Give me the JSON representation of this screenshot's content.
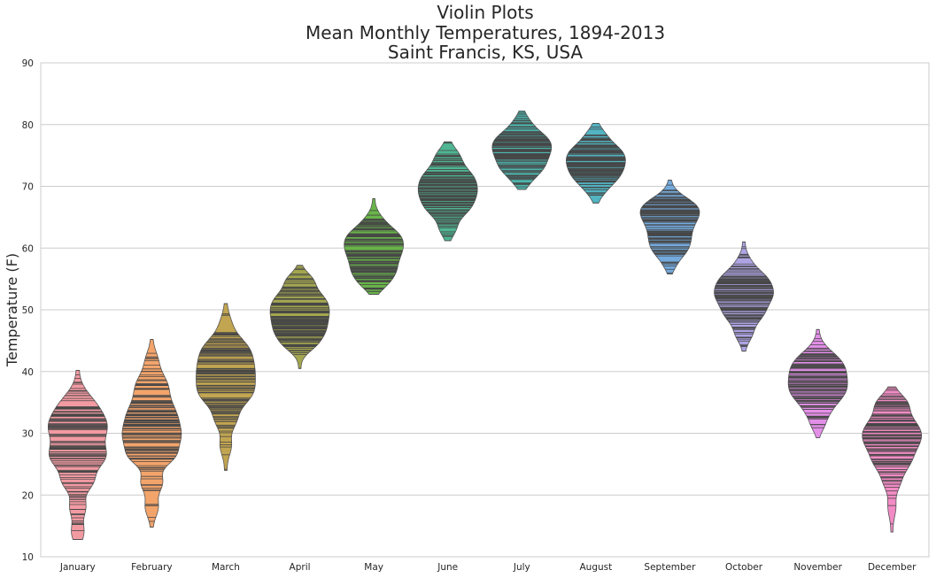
{
  "chart_data": {
    "type": "violin",
    "title": [
      "Violin Plots",
      "Mean Monthly Temperatures, 1894-2013",
      "Saint Francis, KS, USA"
    ],
    "xlabel": "",
    "ylabel": "Temperature (F)",
    "ylim": [
      10,
      90
    ],
    "yticks": [
      10,
      20,
      30,
      40,
      50,
      60,
      70,
      80,
      90
    ],
    "grid": true,
    "inner": "stick",
    "categories": [
      "January",
      "February",
      "March",
      "April",
      "May",
      "June",
      "July",
      "August",
      "September",
      "October",
      "November",
      "December"
    ],
    "colors": [
      "#f29aa2",
      "#f3a46b",
      "#c2a551",
      "#a3a64f",
      "#69b54a",
      "#4fb592",
      "#4db5ac",
      "#52b3c2",
      "#74aadd",
      "#aea3e3",
      "#e38fe8",
      "#f28bc5"
    ],
    "distributions": [
      {
        "month": "January",
        "min": 12.8,
        "max": 40.2,
        "peaks": [
          [
            31,
            0.8,
            2.5
          ],
          [
            26,
            0.7,
            2.0
          ],
          [
            22,
            0.35,
            1.5
          ],
          [
            18,
            0.2,
            1.5
          ],
          [
            14,
            0.15,
            1.5
          ],
          [
            35,
            0.3,
            2.0
          ]
        ]
      },
      {
        "month": "February",
        "min": 14.8,
        "max": 45.2,
        "peaks": [
          [
            33,
            0.8,
            2.5
          ],
          [
            29,
            0.75,
            2.0
          ],
          [
            26,
            0.55,
            1.5
          ],
          [
            22,
            0.35,
            1.5
          ],
          [
            18,
            0.2,
            1.5
          ],
          [
            38,
            0.45,
            2.0
          ],
          [
            42,
            0.15,
            1.5
          ]
        ]
      },
      {
        "month": "March",
        "min": 24.0,
        "max": 51.0,
        "peaks": [
          [
            40,
            0.8,
            2.5
          ],
          [
            36,
            0.6,
            2.0
          ],
          [
            44,
            0.5,
            2.0
          ],
          [
            32,
            0.25,
            1.5
          ],
          [
            28,
            0.15,
            1.5
          ],
          [
            48,
            0.1,
            1.5
          ]
        ]
      },
      {
        "month": "April",
        "min": 40.5,
        "max": 57.2,
        "peaks": [
          [
            49,
            0.8,
            2.0
          ],
          [
            52,
            0.6,
            1.8
          ],
          [
            46,
            0.55,
            1.6
          ],
          [
            44,
            0.25,
            1.2
          ],
          [
            55,
            0.3,
            1.2
          ]
        ]
      },
      {
        "month": "May",
        "min": 52.5,
        "max": 68.0,
        "peaks": [
          [
            62,
            0.85,
            1.8
          ],
          [
            59,
            0.8,
            1.8
          ],
          [
            56,
            0.6,
            1.5
          ],
          [
            54,
            0.25,
            1.2
          ],
          [
            65,
            0.1,
            1.2
          ]
        ]
      },
      {
        "month": "June",
        "min": 61.2,
        "max": 77.2,
        "peaks": [
          [
            69,
            0.85,
            2.0
          ],
          [
            72,
            0.5,
            1.6
          ],
          [
            66,
            0.4,
            1.5
          ],
          [
            63,
            0.2,
            1.2
          ],
          [
            75,
            0.3,
            1.4
          ]
        ]
      },
      {
        "month": "July",
        "min": 69.5,
        "max": 82.2,
        "peaks": [
          [
            75.5,
            0.85,
            2.0
          ],
          [
            78,
            0.45,
            1.5
          ],
          [
            72.5,
            0.4,
            1.4
          ],
          [
            80.5,
            0.15,
            1.2
          ],
          [
            70.5,
            0.1,
            1.0
          ]
        ]
      },
      {
        "month": "August",
        "min": 67.3,
        "max": 80.2,
        "peaks": [
          [
            73.5,
            0.85,
            1.8
          ],
          [
            76,
            0.55,
            1.5
          ],
          [
            71,
            0.4,
            1.4
          ],
          [
            69,
            0.15,
            1.2
          ],
          [
            78.5,
            0.2,
            1.2
          ]
        ]
      },
      {
        "month": "September",
        "min": 55.8,
        "max": 71.0,
        "peaks": [
          [
            64.5,
            0.85,
            2.0
          ],
          [
            67,
            0.65,
            1.6
          ],
          [
            61,
            0.55,
            1.6
          ],
          [
            59,
            0.3,
            1.3
          ],
          [
            57,
            0.1,
            1.0
          ]
        ]
      },
      {
        "month": "October",
        "min": 43.3,
        "max": 61.0,
        "peaks": [
          [
            52.5,
            0.85,
            2.0
          ],
          [
            55.5,
            0.4,
            1.5
          ],
          [
            49,
            0.4,
            1.5
          ],
          [
            46,
            0.2,
            1.3
          ],
          [
            58,
            0.1,
            1.2
          ]
        ]
      },
      {
        "month": "November",
        "min": 29.3,
        "max": 46.8,
        "peaks": [
          [
            39,
            0.85,
            2.2
          ],
          [
            36,
            0.6,
            1.8
          ],
          [
            42,
            0.5,
            1.8
          ],
          [
            33,
            0.25,
            1.5
          ],
          [
            31,
            0.1,
            1.0
          ]
        ]
      },
      {
        "month": "December",
        "min": 14.0,
        "max": 37.5,
        "peaks": [
          [
            31,
            0.85,
            2.2
          ],
          [
            28,
            0.65,
            2.0
          ],
          [
            25,
            0.45,
            1.6
          ],
          [
            22,
            0.25,
            1.5
          ],
          [
            18,
            0.12,
            1.5
          ],
          [
            35,
            0.45,
            1.5
          ]
        ]
      }
    ]
  }
}
